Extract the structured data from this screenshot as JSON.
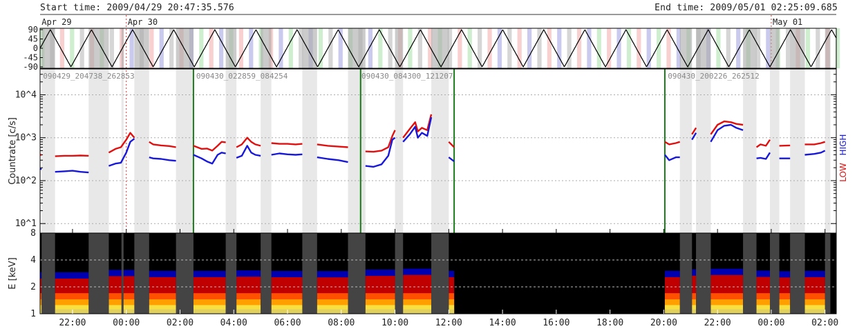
{
  "header": {
    "start_label": "Start time: 2009/04/29 20:47:35.576",
    "end_label": "End time: 2009/05/01 02:25:09.685"
  },
  "date_markers": [
    {
      "label": "Apr 29",
      "hour": 20.8
    },
    {
      "label": "Apr 30",
      "hour": 24.0
    },
    {
      "label": "May 01",
      "hour": 48.0
    }
  ],
  "chart_data": [
    {
      "type": "line",
      "panel": "attitude",
      "y_ticks": [
        "90",
        "45",
        "0",
        "-45",
        "-90"
      ],
      "ylim": [
        -90,
        90
      ],
      "series": [
        {
          "shape": "triangle",
          "amplitude": 90,
          "period_hours": 1.53
        }
      ]
    },
    {
      "type": "line",
      "panel": "countrate",
      "ylabel": "Countrate [c/s]",
      "yscale": "log",
      "ylim": [
        6,
        40000
      ],
      "y_ticks": [
        "10^4",
        "10^3",
        "10^2",
        "10^1"
      ],
      "right_labels": [
        {
          "text": "LOW",
          "color": "#e01010"
        },
        {
          "text": "HIGH",
          "color": "#1818d8"
        }
      ],
      "segment_labels": [
        {
          "text": "090429_204738_262853",
          "hour": 20.85
        },
        {
          "text": "090430_022859_084254",
          "hour": 26.55
        },
        {
          "text": "090430_084300_121207",
          "hour": 32.7
        },
        {
          "text": "090430_200226_262512",
          "hour": 44.1
        }
      ],
      "segment_boundaries": [
        26.5,
        32.72,
        36.2,
        44.04
      ],
      "series": [
        {
          "name": "LOW",
          "color": "#e01010",
          "segments": [
            [
              [
                20.78,
                400
              ],
              [
                20.85,
                400
              ]
            ],
            [
              [
                21.35,
                370
              ],
              [
                21.7,
                380
              ],
              [
                22.0,
                380
              ],
              [
                22.3,
                385
              ],
              [
                22.6,
                380
              ]
            ],
            [
              [
                23.35,
                450
              ],
              [
                23.6,
                550
              ],
              [
                23.8,
                600
              ],
              [
                24.0,
                900
              ],
              [
                24.15,
                1300
              ],
              [
                24.3,
                1000
              ]
            ],
            [
              [
                24.85,
                800
              ],
              [
                25.0,
                700
              ],
              [
                25.3,
                660
              ],
              [
                25.6,
                640
              ],
              [
                25.85,
                600
              ]
            ],
            [
              [
                26.5,
                650
              ],
              [
                26.8,
                550
              ],
              [
                27.0,
                560
              ],
              [
                27.2,
                500
              ],
              [
                27.4,
                650
              ],
              [
                27.55,
                800
              ],
              [
                27.7,
                780
              ]
            ],
            [
              [
                28.1,
                600
              ],
              [
                28.3,
                700
              ],
              [
                28.5,
                1000
              ],
              [
                28.65,
                800
              ],
              [
                28.8,
                700
              ],
              [
                29.0,
                650
              ]
            ],
            [
              [
                29.4,
                750
              ],
              [
                29.7,
                720
              ],
              [
                30.0,
                720
              ],
              [
                30.3,
                700
              ],
              [
                30.55,
                720
              ]
            ],
            [
              [
                31.1,
                700
              ],
              [
                31.5,
                650
              ],
              [
                31.9,
                620
              ],
              [
                32.25,
                600
              ]
            ],
            [
              [
                32.9,
                480
              ],
              [
                33.2,
                470
              ],
              [
                33.5,
                500
              ],
              [
                33.75,
                600
              ],
              [
                33.9,
                1100
              ],
              [
                34.0,
                1500
              ]
            ],
            [
              [
                34.3,
                1000
              ],
              [
                34.55,
                1600
              ],
              [
                34.75,
                2300
              ],
              [
                34.85,
                1400
              ],
              [
                35.0,
                1700
              ],
              [
                35.2,
                1500
              ],
              [
                35.35,
                3500
              ]
            ],
            [
              [
                36.0,
                800
              ],
              [
                36.2,
                600
              ]
            ],
            [
              [
                44.04,
                800
              ],
              [
                44.2,
                700
              ],
              [
                44.45,
                750
              ],
              [
                44.6,
                800
              ]
            ],
            [
              [
                45.05,
                1200
              ],
              [
                45.2,
                1700
              ]
            ],
            [
              [
                45.75,
                1200
              ],
              [
                46.0,
                2000
              ],
              [
                46.25,
                2400
              ],
              [
                46.5,
                2300
              ],
              [
                46.7,
                2100
              ],
              [
                46.95,
                2000
              ]
            ],
            [
              [
                47.45,
                600
              ],
              [
                47.6,
                700
              ],
              [
                47.8,
                650
              ],
              [
                47.95,
                900
              ]
            ],
            [
              [
                48.3,
                650
              ],
              [
                48.7,
                660
              ]
            ],
            [
              [
                49.25,
                700
              ],
              [
                49.6,
                700
              ],
              [
                49.85,
                750
              ],
              [
                50.0,
                800
              ]
            ]
          ]
        },
        {
          "name": "HIGH",
          "color": "#1818d8",
          "segments": [
            [
              [
                20.78,
                190
              ],
              [
                20.85,
                185
              ]
            ],
            [
              [
                21.35,
                160
              ],
              [
                21.7,
                165
              ],
              [
                22.0,
                170
              ],
              [
                22.3,
                160
              ],
              [
                22.6,
                155
              ]
            ],
            [
              [
                23.35,
                220
              ],
              [
                23.6,
                250
              ],
              [
                23.8,
                260
              ],
              [
                24.0,
                450
              ],
              [
                24.15,
                800
              ],
              [
                24.3,
                950
              ]
            ],
            [
              [
                24.85,
                350
              ],
              [
                25.0,
                330
              ],
              [
                25.3,
                320
              ],
              [
                25.6,
                300
              ],
              [
                25.85,
                290
              ]
            ],
            [
              [
                26.5,
                400
              ],
              [
                26.8,
                330
              ],
              [
                27.0,
                280
              ],
              [
                27.2,
                250
              ],
              [
                27.4,
                400
              ],
              [
                27.55,
                450
              ],
              [
                27.7,
                430
              ]
            ],
            [
              [
                28.1,
                340
              ],
              [
                28.3,
                380
              ],
              [
                28.5,
                650
              ],
              [
                28.65,
                450
              ],
              [
                28.8,
                400
              ],
              [
                29.0,
                380
              ]
            ],
            [
              [
                29.4,
                400
              ],
              [
                29.7,
                430
              ],
              [
                30.0,
                410
              ],
              [
                30.3,
                400
              ],
              [
                30.55,
                410
              ]
            ],
            [
              [
                31.1,
                350
              ],
              [
                31.5,
                320
              ],
              [
                31.9,
                300
              ],
              [
                32.25,
                270
              ]
            ],
            [
              [
                32.9,
                220
              ],
              [
                33.2,
                210
              ],
              [
                33.5,
                240
              ],
              [
                33.75,
                380
              ],
              [
                33.9,
                900
              ],
              [
                34.0,
                1000
              ]
            ],
            [
              [
                34.3,
                800
              ],
              [
                34.55,
                1200
              ],
              [
                34.75,
                1800
              ],
              [
                34.85,
                1000
              ],
              [
                35.0,
                1300
              ],
              [
                35.2,
                1100
              ],
              [
                35.35,
                3000
              ]
            ],
            [
              [
                36.0,
                350
              ],
              [
                36.2,
                280
              ]
            ],
            [
              [
                44.04,
                400
              ],
              [
                44.2,
                300
              ],
              [
                44.45,
                350
              ],
              [
                44.6,
                350
              ]
            ],
            [
              [
                45.05,
                900
              ],
              [
                45.2,
                1300
              ]
            ],
            [
              [
                45.75,
                800
              ],
              [
                46.0,
                1500
              ],
              [
                46.25,
                1900
              ],
              [
                46.5,
                2000
              ],
              [
                46.7,
                1700
              ],
              [
                46.95,
                1500
              ]
            ],
            [
              [
                47.45,
                330
              ],
              [
                47.6,
                340
              ],
              [
                47.8,
                320
              ],
              [
                47.95,
                450
              ]
            ],
            [
              [
                48.3,
                330
              ],
              [
                48.7,
                330
              ]
            ],
            [
              [
                49.25,
                400
              ],
              [
                49.6,
                420
              ],
              [
                49.85,
                450
              ],
              [
                50.0,
                500
              ]
            ]
          ]
        }
      ]
    },
    {
      "type": "heatmap",
      "panel": "spectrogram",
      "ylabel": "E [keV]",
      "yscale": "log",
      "ylim": [
        1,
        8
      ],
      "y_ticks": [
        "8",
        "4",
        "2",
        "1"
      ]
    }
  ],
  "x_axis": {
    "range_hours": [
      20.793,
      50.419
    ],
    "tick_labels": [
      {
        "label": "22:00",
        "hour": 22
      },
      {
        "label": "00:00",
        "hour": 24
      },
      {
        "label": "02:00",
        "hour": 26
      },
      {
        "label": "04:00",
        "hour": 28
      },
      {
        "label": "06:00",
        "hour": 30
      },
      {
        "label": "08:00",
        "hour": 32
      },
      {
        "label": "10:00",
        "hour": 34
      },
      {
        "label": "12:00",
        "hour": 36
      },
      {
        "label": "14:00",
        "hour": 38
      },
      {
        "label": "16:00",
        "hour": 40
      },
      {
        "label": "18:00",
        "hour": 42
      },
      {
        "label": "20:00",
        "hour": 44
      },
      {
        "label": "22:00",
        "hour": 46
      },
      {
        "label": "00:00",
        "hour": 48
      },
      {
        "label": "02:00",
        "hour": 50
      }
    ]
  },
  "gaps_hours": [
    [
      20.85,
      21.35
    ],
    [
      22.6,
      23.35
    ],
    [
      23.82,
      23.9
    ],
    [
      24.3,
      24.85
    ],
    [
      25.85,
      26.5
    ],
    [
      27.7,
      28.1
    ],
    [
      29.0,
      29.4
    ],
    [
      30.55,
      31.1
    ],
    [
      32.25,
      32.9
    ],
    [
      34.0,
      34.3
    ],
    [
      35.35,
      36.0
    ],
    [
      44.6,
      45.05
    ],
    [
      45.2,
      45.75
    ],
    [
      46.95,
      47.45
    ],
    [
      47.95,
      48.3
    ],
    [
      48.7,
      49.25
    ],
    [
      50.0,
      50.2
    ]
  ],
  "colors": {
    "low": "#e01010",
    "high": "#1818d8",
    "segment_line": "#1a7a1a",
    "gap": "#e8e8e8",
    "spectro_gap": "#444444"
  }
}
